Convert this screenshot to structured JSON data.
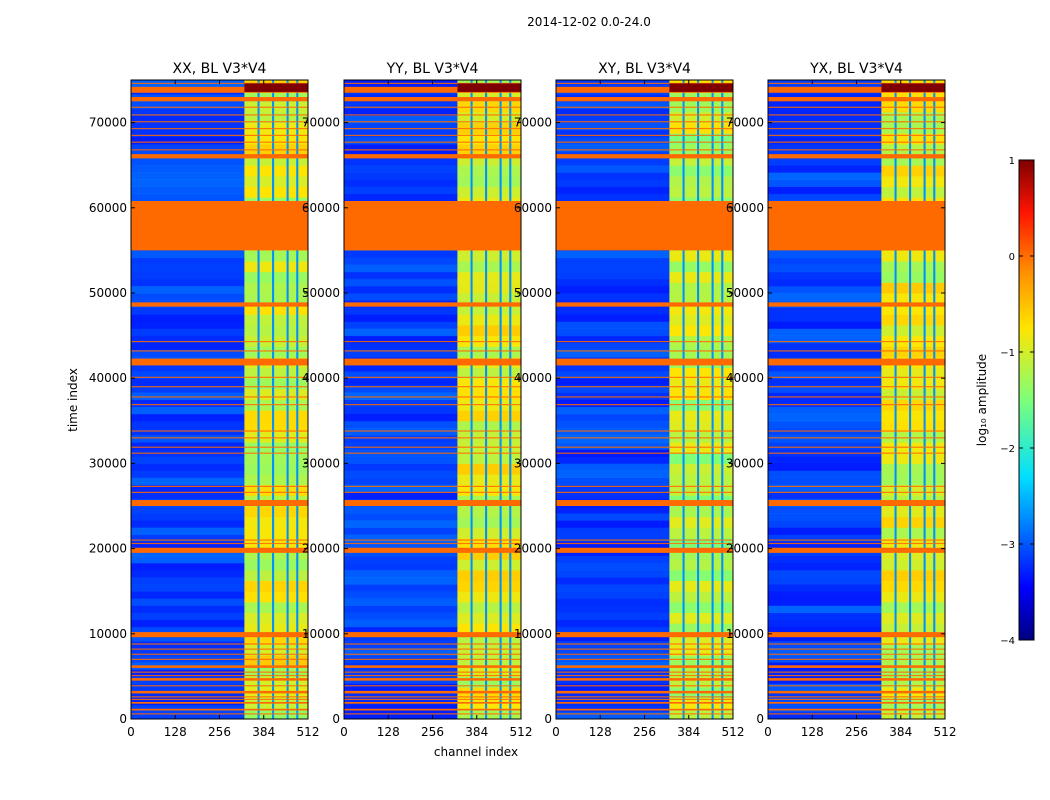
{
  "suptitle": "2014-12-02 0.0-24.0",
  "chart_data": {
    "type": "heatmap",
    "xlabel": "channel index",
    "ylabel": "time index",
    "x_ticks": [
      0,
      128,
      256,
      384,
      512
    ],
    "y_ticks": [
      0,
      10000,
      20000,
      30000,
      40000,
      50000,
      60000,
      70000
    ],
    "xlim": [
      0,
      512
    ],
    "ylim": [
      0,
      75000
    ],
    "panels": [
      {
        "title": "XX, BL V3*V4"
      },
      {
        "title": "YY, BL V3*V4"
      },
      {
        "title": "XY, BL V3*V4"
      },
      {
        "title": "YX, BL V3*V4"
      }
    ],
    "colorbar": {
      "label": "log₁₀ amplitude",
      "ticks": [
        1,
        0,
        -1,
        -2,
        -3,
        -4
      ],
      "range": [
        -4,
        1
      ],
      "colormap": "jet"
    },
    "flagged_color": "#ff6a00",
    "flagged_time_bands": [
      [
        55000,
        60800
      ],
      [
        65800,
        66300
      ],
      [
        72500,
        73000
      ],
      [
        73500,
        74200
      ],
      [
        41500,
        42300
      ],
      [
        48400,
        48900
      ],
      [
        25000,
        25700
      ],
      [
        19500,
        20100
      ],
      [
        9600,
        10200
      ],
      [
        6000,
        6300
      ],
      [
        4500,
        4800
      ],
      [
        3000,
        3300
      ],
      [
        1800,
        2000
      ],
      [
        1000,
        1200
      ]
    ],
    "thin_flag_lines": [
      74600,
      71800,
      70900,
      70100,
      69300,
      68500,
      67700,
      66800,
      44300,
      43200,
      40100,
      39000,
      37800,
      36900,
      33800,
      33000,
      31900,
      31200,
      27300,
      26600,
      21000,
      20600,
      8800,
      8200,
      7600,
      7000,
      5500,
      5100,
      3900,
      2600,
      2300,
      600
    ],
    "bright_channel_band": [
      328,
      512
    ],
    "dark_channel_gaps": [
      366,
      372,
      408,
      414,
      450,
      456,
      478,
      484
    ]
  }
}
